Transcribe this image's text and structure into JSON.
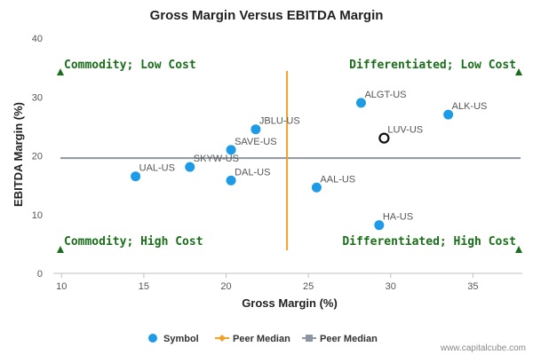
{
  "chart_data": {
    "type": "scatter",
    "title": "Gross Margin Versus EBITDA Margin",
    "xlabel": "Gross Margin (%)",
    "ylabel": "EBITDA Margin (%)",
    "xlim": [
      9.5,
      38
    ],
    "ylim": [
      0,
      40
    ],
    "x_ticks": [
      10,
      15,
      20,
      25,
      30,
      35
    ],
    "y_ticks": [
      0,
      10,
      20,
      30,
      40
    ],
    "grid": false,
    "series": [
      {
        "name": "Symbol",
        "color": "#1e9be6",
        "points": [
          {
            "label": "UAL-US",
            "x": 14.5,
            "y": 16.5
          },
          {
            "label": "SKYW-US",
            "x": 17.8,
            "y": 18.1
          },
          {
            "label": "DAL-US",
            "x": 20.3,
            "y": 15.8
          },
          {
            "label": "SAVE-US",
            "x": 20.3,
            "y": 21.0
          },
          {
            "label": "JBLU-US",
            "x": 21.8,
            "y": 24.5
          },
          {
            "label": "AAL-US",
            "x": 25.5,
            "y": 14.6
          },
          {
            "label": "ALGT-US",
            "x": 28.2,
            "y": 29.0
          },
          {
            "label": "HA-US",
            "x": 29.3,
            "y": 8.2
          },
          {
            "label": "ALK-US",
            "x": 33.5,
            "y": 27.0
          }
        ]
      }
    ],
    "highlight": {
      "label": "LUV-US",
      "x": 29.6,
      "y": 23.0,
      "color": "#111111"
    },
    "peer_median_x": {
      "name": "Peer Median",
      "value": 23.7,
      "color": "#f2a12a"
    },
    "peer_median_y": {
      "name": "Peer Median",
      "value": 19.6,
      "color": "#8f96a3"
    },
    "quadrants": [
      {
        "label": "Commodity; Low Cost",
        "position": "top-left"
      },
      {
        "label": "Differentiated; Low Cost",
        "position": "top-right"
      },
      {
        "label": "Commodity; High Cost",
        "position": "bottom-left"
      },
      {
        "label": "Differentiated; High Cost",
        "position": "bottom-right"
      }
    ],
    "quadrant_color": "#1a6e1a",
    "legend_position": "bottom-center",
    "legend": [
      {
        "label": "Symbol",
        "marker": "circle",
        "color": "#1e9be6"
      },
      {
        "label": "Peer Median",
        "marker": "diamond-line",
        "color": "#f2a12a"
      },
      {
        "label": "Peer Median",
        "marker": "square-line",
        "color": "#8f96a3"
      }
    ],
    "credit": "www.capitalcube.com"
  }
}
